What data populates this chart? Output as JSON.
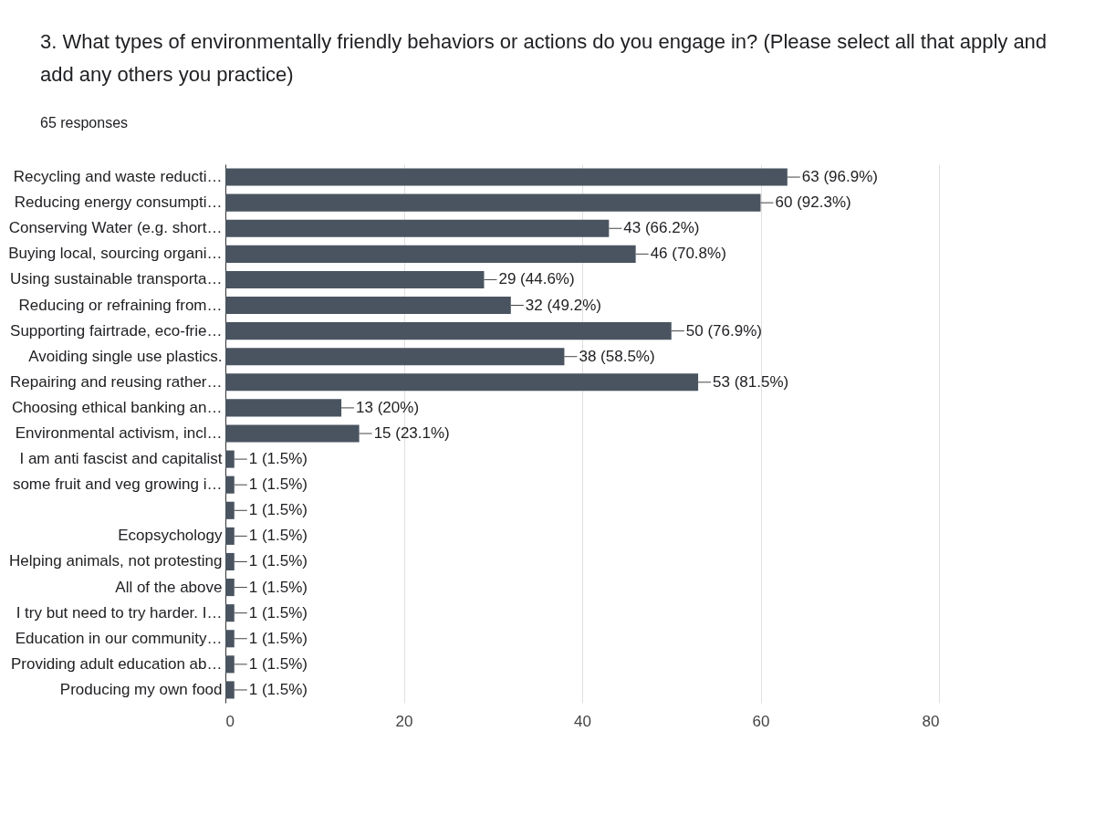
{
  "chart_data": {
    "type": "bar",
    "orientation": "horizontal",
    "title": "3. What types of environmentally friendly behaviors or actions do you engage in? (Please select all that apply and add any others you practice)",
    "subtitle": "65 responses",
    "categories": [
      "Recycling and waste reducti…",
      "Reducing energy consumpti…",
      "Conserving Water (e.g. short…",
      "Buying local, sourcing organi…",
      "Using sustainable transporta…",
      "Reducing or refraining from…",
      "Supporting fairtrade, eco-frie…",
      "Avoiding single use plastics.",
      "Repairing and reusing rather…",
      "Choosing ethical banking an…",
      "Environmental activism, incl…",
      "I am anti fascist and capitalist",
      "some fruit and veg growing i…",
      null,
      "Ecopsychology",
      "Helping animals, not protesting",
      "All of the above",
      "I try but need to try harder. I…",
      "Education in our community…",
      "Providing adult education ab…",
      "Producing my own food"
    ],
    "values": [
      63,
      60,
      43,
      46,
      29,
      32,
      50,
      38,
      53,
      13,
      15,
      1,
      1,
      1,
      1,
      1,
      1,
      1,
      1,
      1,
      1
    ],
    "value_labels": [
      "63 (96.9%)",
      "60 (92.3%)",
      "43 (66.2%)",
      "46 (70.8%)",
      "29 (44.6%)",
      "32 (49.2%)",
      "50 (76.9%)",
      "38 (58.5%)",
      "53 (81.5%)",
      "13 (20%)",
      "15 (23.1%)",
      "1 (1.5%)",
      "1 (1.5%)",
      "1 (1.5%)",
      "1 (1.5%)",
      "1 (1.5%)",
      "1 (1.5%)",
      "1 (1.5%)",
      "1 (1.5%)",
      "1 (1.5%)",
      "1 (1.5%)"
    ],
    "color": "#4a5461",
    "xlim": [
      0,
      80
    ],
    "xticks": [
      0,
      20,
      40,
      60,
      80
    ],
    "grid": "x"
  }
}
